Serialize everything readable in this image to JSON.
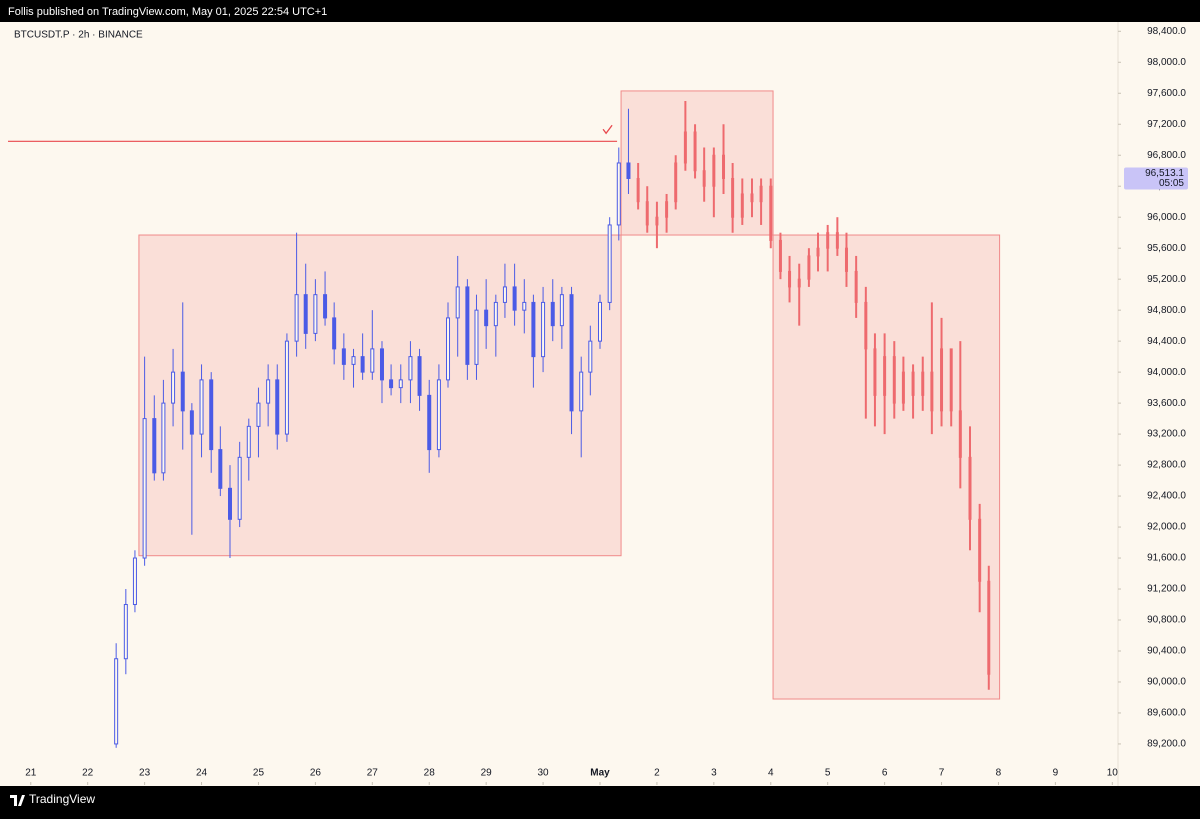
{
  "header": {
    "published": "Follis published on TradingView.com, May 01, 2025 22:54 UTC+1"
  },
  "footer": {
    "brand": "TradingView"
  },
  "chart_data": {
    "type": "candlestick",
    "title": "BTCUSDT.P · 2h · BINANCE",
    "xlim": [
      20.6,
      40.1
    ],
    "ylim": [
      88670,
      98520
    ],
    "xticks": [
      21,
      22,
      23,
      24,
      25,
      26,
      27,
      28,
      29,
      30,
      {
        "value": 31,
        "label": "May"
      },
      {
        "value": 32,
        "label": "2"
      },
      {
        "value": 33,
        "label": "3"
      },
      {
        "value": 34,
        "label": "4"
      },
      {
        "value": 35,
        "label": "5"
      },
      {
        "value": 36,
        "label": "6"
      },
      {
        "value": 37,
        "label": "7"
      },
      {
        "value": 38,
        "label": "8"
      },
      {
        "value": 39,
        "label": "9"
      },
      {
        "value": 40,
        "label": "10"
      }
    ],
    "yticks": [
      {
        "value": 89200,
        "label": "89,200.0"
      },
      {
        "value": 89600,
        "label": "89,600.0"
      },
      {
        "value": 90000,
        "label": "90,000.0"
      },
      {
        "value": 90400,
        "label": "90,400.0"
      },
      {
        "value": 90800,
        "label": "90,800.0"
      },
      {
        "value": 91200,
        "label": "91,200.0"
      },
      {
        "value": 91600,
        "label": "91,600.0"
      },
      {
        "value": 92000,
        "label": "92,000.0"
      },
      {
        "value": 92400,
        "label": "92,400.0"
      },
      {
        "value": 92800,
        "label": "92,800.0"
      },
      {
        "value": 93200,
        "label": "93,200.0"
      },
      {
        "value": 93600,
        "label": "93,600.0"
      },
      {
        "value": 94000,
        "label": "94,000.0"
      },
      {
        "value": 94400,
        "label": "94,400.0"
      },
      {
        "value": 94800,
        "label": "94,800.0"
      },
      {
        "value": 95200,
        "label": "95,200.0"
      },
      {
        "value": 95600,
        "label": "95,600.0"
      },
      {
        "value": 96000,
        "label": "96,000.0"
      },
      {
        "value": 96400,
        "label": "96,400.0"
      },
      {
        "value": 96800,
        "label": "96,800.0"
      },
      {
        "value": 97200,
        "label": "97,200.0"
      },
      {
        "value": 97600,
        "label": "97,600.0"
      },
      {
        "value": 98000,
        "label": "98,000.0"
      },
      {
        "value": 98400,
        "label": "98,400.0"
      }
    ],
    "last_price": {
      "value": 96513.1,
      "label": "96,513.1",
      "countdown": "05:05",
      "color": "#c9c4f7"
    },
    "level": {
      "value": 96980,
      "x1": 31.3,
      "color": "#e8484d"
    },
    "zones": [
      {
        "x0": 22.9,
        "x1": 31.37,
        "y0": 91630,
        "y1": 95770,
        "color": "#f08a8a"
      },
      {
        "x0": 31.37,
        "x1": 34.04,
        "y0": 95770,
        "y1": 97630,
        "color": "#f08a8a"
      },
      {
        "x0": 34.04,
        "x1": 38.02,
        "y0": 89780,
        "y1": 95770,
        "color": "#f08a8a"
      }
    ],
    "series": [
      {
        "color": "#4b5be6",
        "hollow_up": true,
        "x": [
          22.5,
          22.67,
          22.83,
          23.0,
          23.17,
          23.33,
          23.5,
          23.67,
          23.83,
          24.0,
          24.17,
          24.33,
          24.5,
          24.67,
          24.83,
          25.0,
          25.17,
          25.33,
          25.5,
          25.67,
          25.83,
          26.0,
          26.17,
          26.33,
          26.5,
          26.67,
          26.83,
          27.0,
          27.17,
          27.33,
          27.5,
          27.67,
          27.83,
          28.0,
          28.17,
          28.33,
          28.5,
          28.67,
          28.83,
          29.0,
          29.17,
          29.33,
          29.5,
          29.67,
          29.83,
          30.0,
          30.17,
          30.33,
          30.5,
          30.67,
          30.83,
          31.0,
          31.17,
          31.33,
          31.5
        ],
        "open": [
          89200,
          90300,
          91000,
          91600,
          93400,
          92700,
          93600,
          94000,
          93500,
          93200,
          93900,
          93000,
          92500,
          92100,
          92900,
          93300,
          93600,
          93900,
          93200,
          94400,
          95000,
          94500,
          95000,
          94700,
          94300,
          94100,
          94200,
          94000,
          94300,
          93900,
          93800,
          93900,
          94200,
          93700,
          93000,
          93900,
          94700,
          95100,
          94100,
          94800,
          94600,
          94900,
          95100,
          94800,
          94900,
          94200,
          94900,
          94600,
          95000,
          93500,
          94000,
          94400,
          94900,
          95900,
          96700
        ],
        "high": [
          90500,
          91200,
          91700,
          94200,
          93700,
          93900,
          94300,
          94900,
          93600,
          94100,
          94000,
          93300,
          92800,
          93100,
          93400,
          93800,
          94100,
          94100,
          94500,
          95800,
          95400,
          95200,
          95300,
          94900,
          94500,
          94300,
          94500,
          94800,
          94400,
          94100,
          94100,
          94400,
          94300,
          93900,
          94100,
          94900,
          95500,
          95200,
          95000,
          95200,
          95000,
          95400,
          95400,
          95200,
          95000,
          95100,
          95200,
          95100,
          95100,
          94200,
          94600,
          95000,
          96000,
          96900,
          97400
        ],
        "low": [
          89150,
          90100,
          90900,
          91500,
          92600,
          92600,
          93300,
          93000,
          91900,
          92900,
          92700,
          92400,
          91600,
          92000,
          92600,
          92900,
          93300,
          93000,
          93100,
          94200,
          94300,
          94400,
          94600,
          94100,
          93900,
          93800,
          93900,
          93900,
          93600,
          93700,
          93600,
          93600,
          93500,
          92700,
          92900,
          93800,
          94200,
          93900,
          93900,
          94300,
          94200,
          94700,
          94600,
          94500,
          93800,
          94000,
          94400,
          94300,
          93200,
          92900,
          93700,
          94300,
          94800,
          95700,
          96300
        ],
        "close": [
          90300,
          91000,
          91600,
          93400,
          92700,
          93600,
          94000,
          93500,
          93200,
          93900,
          93000,
          92500,
          92100,
          92900,
          93300,
          93600,
          93900,
          93200,
          94400,
          95000,
          94500,
          95000,
          94700,
          94300,
          94100,
          94200,
          94000,
          94300,
          93900,
          93800,
          93900,
          94200,
          93700,
          93000,
          93900,
          94700,
          95100,
          94100,
          94800,
          94600,
          94900,
          95100,
          94800,
          94900,
          94200,
          94900,
          94600,
          95000,
          93500,
          94000,
          94400,
          94900,
          95900,
          96700,
          96500
        ]
      },
      {
        "color": "#ee6a6e",
        "hollow_up": false,
        "x": [
          31.67,
          31.83,
          32.0,
          32.17,
          32.33,
          32.5,
          32.67,
          32.83,
          33.0,
          33.17,
          33.33,
          33.5,
          33.67,
          33.83,
          34.0,
          34.17,
          34.33,
          34.5,
          34.67,
          34.83,
          35.0,
          35.17,
          35.33,
          35.5,
          35.67,
          35.83,
          36.0,
          36.17,
          36.33,
          36.5,
          36.67,
          36.83,
          37.0,
          37.17,
          37.33,
          37.5,
          37.67,
          37.83
        ],
        "open": [
          96500,
          96200,
          95900,
          96000,
          96200,
          96700,
          97100,
          96600,
          96400,
          96800,
          96500,
          96000,
          96300,
          96200,
          96400,
          95700,
          95300,
          95100,
          95200,
          95500,
          95600,
          95800,
          95600,
          95300,
          94900,
          94300,
          93700,
          94200,
          93600,
          94000,
          93700,
          94000,
          93500,
          94300,
          93500,
          92900,
          92100,
          91300
        ],
        "high": [
          96700,
          96400,
          96200,
          96300,
          96800,
          97500,
          97200,
          96900,
          96900,
          97200,
          96700,
          96500,
          96500,
          96500,
          96500,
          95800,
          95500,
          95400,
          95600,
          95800,
          95900,
          96000,
          95800,
          95500,
          95100,
          94500,
          94500,
          94400,
          94200,
          94100,
          94200,
          94900,
          94700,
          94300,
          94400,
          93300,
          92300,
          91500
        ],
        "low": [
          96100,
          95800,
          95600,
          95800,
          96100,
          96600,
          96500,
          96200,
          96000,
          96300,
          95800,
          95900,
          96000,
          95900,
          95600,
          95200,
          94900,
          94600,
          95100,
          95300,
          95300,
          95500,
          95100,
          94700,
          93400,
          93300,
          93200,
          93400,
          93500,
          93400,
          93500,
          93200,
          93300,
          93300,
          92500,
          91700,
          90900,
          89900
        ],
        "close": [
          96200,
          95900,
          96000,
          96200,
          96700,
          97100,
          96600,
          96400,
          96800,
          96500,
          96000,
          96300,
          96200,
          96400,
          95700,
          95300,
          95100,
          95200,
          95500,
          95600,
          95800,
          95600,
          95300,
          94900,
          94300,
          93700,
          94200,
          93600,
          94000,
          93700,
          94000,
          93500,
          94300,
          93500,
          92900,
          92100,
          91300,
          90100
        ]
      }
    ]
  }
}
